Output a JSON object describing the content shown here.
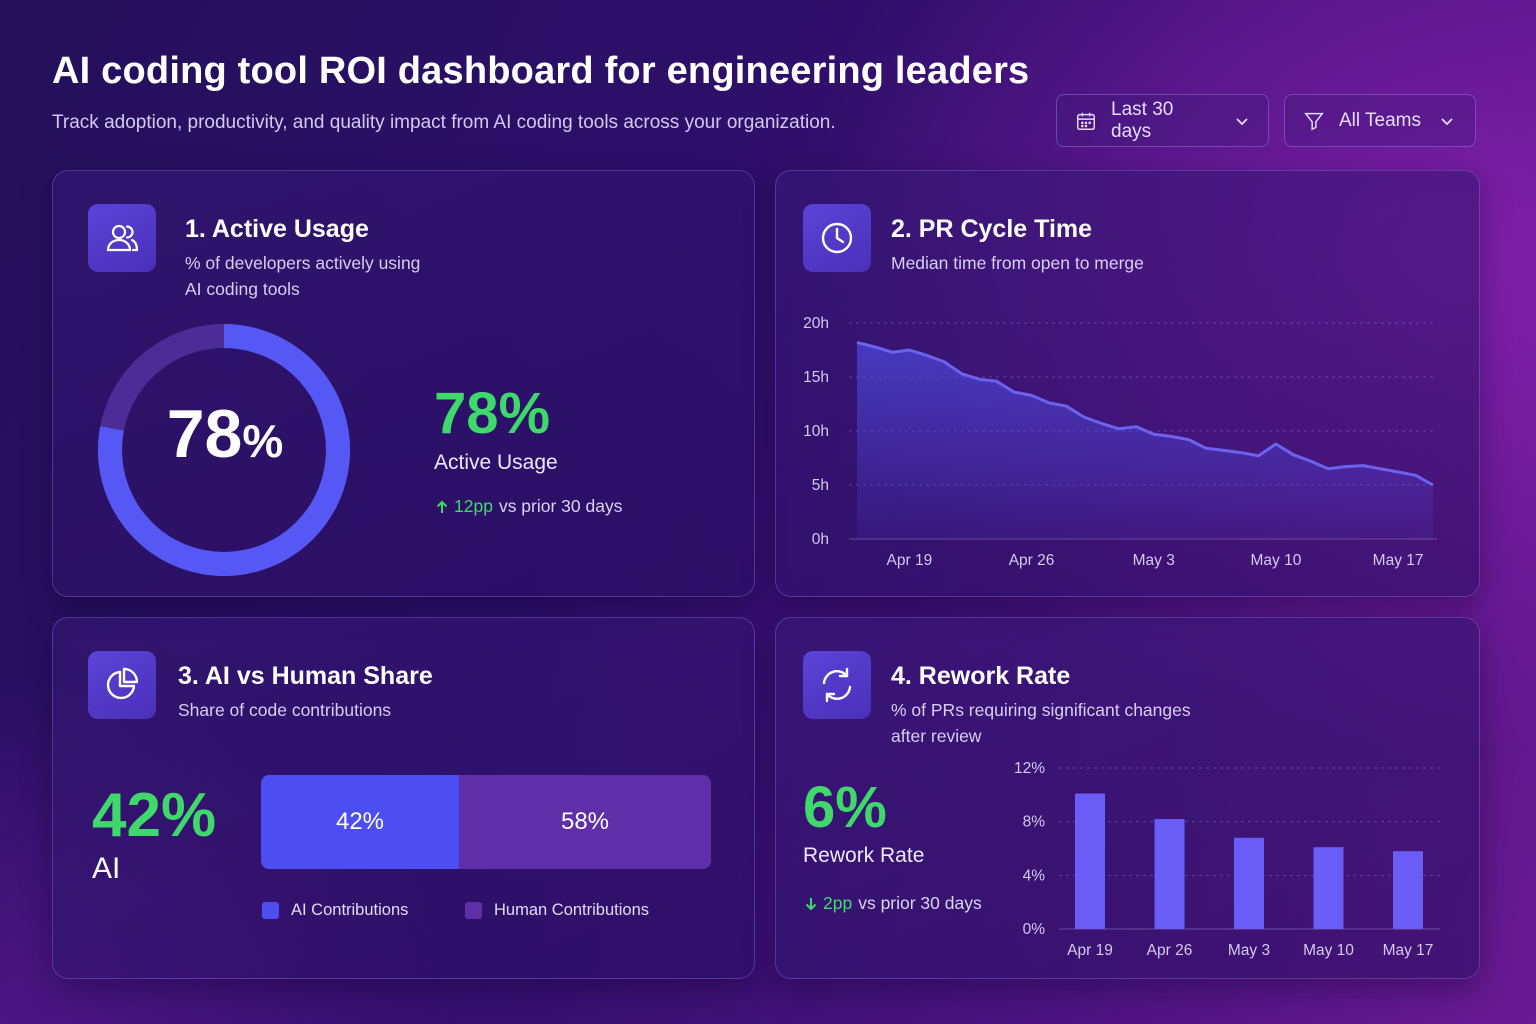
{
  "header": {
    "title": "AI coding tool ROI dashboard for engineering leaders",
    "subtitle": "Track adoption, productivity, and quality impact from AI coding tools across your organization.",
    "filters": {
      "date_range": "Last 30 days",
      "team": "All Teams"
    }
  },
  "active_usage": {
    "title": "1. Active Usage",
    "description_line1": "% of developers actively using",
    "description_line2": "AI coding tools",
    "donut_value": "78",
    "donut_unit": "%",
    "value": "78%",
    "label": "Active Usage",
    "delta_value": "12pp",
    "delta_text": "vs prior 30 days",
    "fraction": 0.78
  },
  "pr_cycle": {
    "title": "2. PR Cycle Time",
    "description": "Median time from open to merge"
  },
  "ai_share": {
    "title": "3. AI vs Human Share",
    "description": "Share of code contributions",
    "value": "42%",
    "label": "AI",
    "ai_segment": "42%",
    "human_segment": "58%",
    "legend_ai": "AI Contributions",
    "legend_human": "Human Contributions"
  },
  "rework": {
    "title": "4. Rework Rate",
    "description_line1": "% of PRs requiring significant changes",
    "description_line2": "after review",
    "value": "6%",
    "label": "Rework Rate",
    "delta_value": "2pp",
    "delta_text": "vs prior 30 days"
  },
  "colors": {
    "accent_green": "#3fd86a",
    "ai_blue": "#4d4ef2",
    "human_purple": "#5e2fa8",
    "line": "#6b63f0"
  },
  "chart_data": [
    {
      "type": "area",
      "y_ticks": [
        "20h",
        "15h",
        "10h",
        "5h",
        "0h"
      ],
      "ylim": [
        0,
        20
      ],
      "x_ticks": [
        "Apr 19",
        "Apr 26",
        "May 3",
        "May 10",
        "May 17"
      ],
      "x_tick_days": [
        3,
        10,
        17,
        24,
        31
      ],
      "x": [
        0,
        1,
        2,
        3,
        4,
        5,
        6,
        7,
        8,
        9,
        10,
        11,
        12,
        13,
        14,
        15,
        16,
        17,
        18,
        19,
        20,
        21,
        22,
        23,
        24,
        25,
        26,
        27,
        28,
        29,
        30,
        31,
        32,
        33
      ],
      "values": [
        18.2,
        17.8,
        17.3,
        17.5,
        17.0,
        16.4,
        15.3,
        14.8,
        14.6,
        13.6,
        13.3,
        12.6,
        12.3,
        11.3,
        10.7,
        10.2,
        10.4,
        9.7,
        9.5,
        9.2,
        8.4,
        8.2,
        8.0,
        7.7,
        8.8,
        7.8,
        7.2,
        6.5,
        6.7,
        6.8,
        6.5,
        6.2,
        5.9,
        5.0
      ],
      "grid": true
    },
    {
      "type": "bar",
      "categories": [
        "Apr 19",
        "Apr 26",
        "May 3",
        "May 10",
        "May 17"
      ],
      "values": [
        10.1,
        8.2,
        6.8,
        6.1,
        5.8
      ],
      "y_ticks": [
        "12%",
        "8%",
        "4%",
        "0%"
      ],
      "ylim": [
        0,
        12
      ],
      "grid": true
    }
  ]
}
